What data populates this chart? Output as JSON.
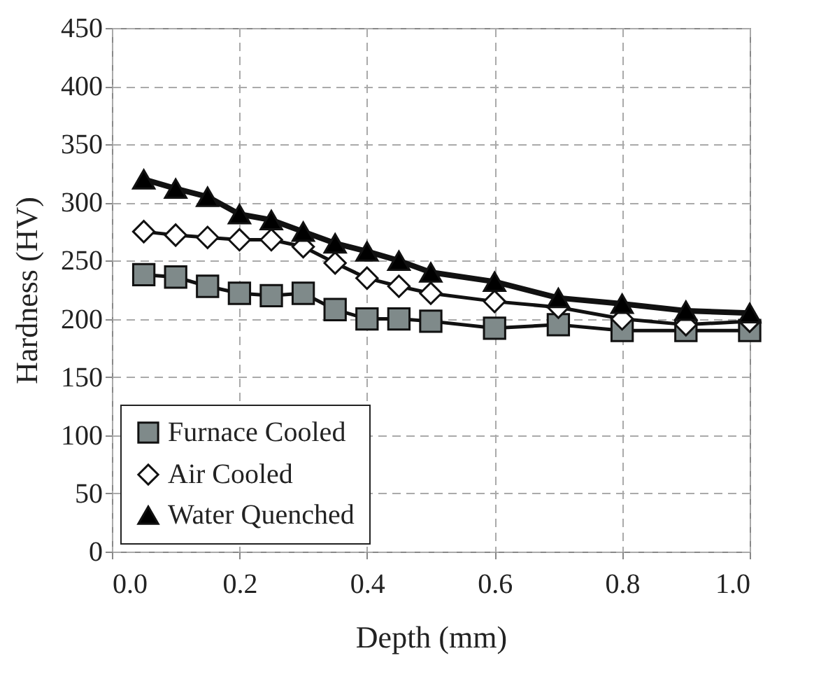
{
  "chart_data": {
    "type": "line",
    "xlabel": "Depth (mm)",
    "ylabel": "Hardness (HV)",
    "x": [
      0.05,
      0.1,
      0.15,
      0.2,
      0.25,
      0.3,
      0.35,
      0.4,
      0.45,
      0.5,
      0.6,
      0.7,
      0.8,
      0.9,
      1.0
    ],
    "series": [
      {
        "name": "Furnace Cooled",
        "color": "#7f8a8a",
        "marker": "square",
        "values": [
          238,
          236,
          228,
          222,
          220,
          222,
          208,
          200,
          200,
          198,
          192,
          195,
          190,
          190,
          190
        ]
      },
      {
        "name": "Air Cooled",
        "color": "#ffffff",
        "marker": "diamond",
        "values": [
          275,
          272,
          270,
          268,
          268,
          262,
          248,
          235,
          228,
          222,
          215,
          210,
          200,
          195,
          198
        ]
      },
      {
        "name": "Water Quenched",
        "color": "#000000",
        "marker": "triangle",
        "values": [
          320,
          312,
          305,
          290,
          285,
          275,
          265,
          258,
          250,
          240,
          232,
          218,
          213,
          207,
          205
        ]
      }
    ],
    "xlim": [
      0,
      1
    ],
    "xticks": [
      {
        "value": 0,
        "label": "0.0"
      },
      {
        "value": 0.2,
        "label": "0.2"
      },
      {
        "value": 0.4,
        "label": "0.4"
      },
      {
        "value": 0.6,
        "label": "0.6"
      },
      {
        "value": 0.8,
        "label": "0.8"
      },
      {
        "value": 1,
        "label": "1.0"
      }
    ],
    "ylim": [
      0,
      450
    ],
    "yticks": [
      0,
      50,
      100,
      150,
      200,
      250,
      300,
      350,
      400,
      450
    ],
    "grid": true,
    "legend": "bottom left",
    "line_style": "solid"
  }
}
